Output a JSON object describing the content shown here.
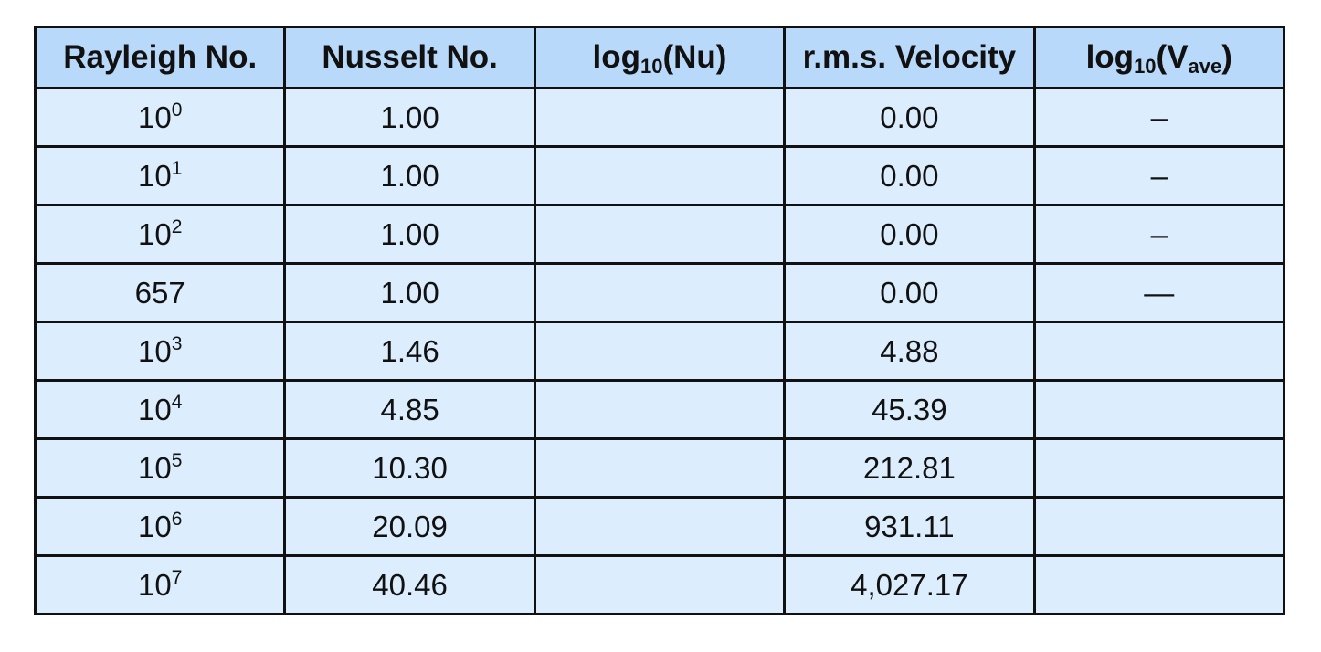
{
  "table": {
    "headers": [
      {
        "text": "Rayleigh No."
      },
      {
        "text": "Nusselt No."
      },
      {
        "pre": "log",
        "sub": "10",
        "post": "(Nu)"
      },
      {
        "text": "r.m.s. Velocity"
      },
      {
        "pre": "log",
        "sub": "10",
        "mid": "(V",
        "sub2": "ave",
        "post": ")"
      }
    ],
    "rows": [
      {
        "ra_base": "10",
        "ra_exp": "0",
        "nu": "1.00",
        "log_nu": "",
        "vel": "0.00",
        "log_v": "–"
      },
      {
        "ra_base": "10",
        "ra_exp": "1",
        "nu": "1.00",
        "log_nu": "",
        "vel": "0.00",
        "log_v": "–"
      },
      {
        "ra_base": "10",
        "ra_exp": "2",
        "nu": "1.00",
        "log_nu": "",
        "vel": "0.00",
        "log_v": "–"
      },
      {
        "ra_base": "657",
        "ra_exp": "",
        "nu": "1.00",
        "log_nu": "",
        "vel": "0.00",
        "log_v": "—"
      },
      {
        "ra_base": "10",
        "ra_exp": "3",
        "nu": "1.46",
        "log_nu": "",
        "vel": "4.88",
        "log_v": ""
      },
      {
        "ra_base": "10",
        "ra_exp": "4",
        "nu": "4.85",
        "log_nu": "",
        "vel": "45.39",
        "log_v": ""
      },
      {
        "ra_base": "10",
        "ra_exp": "5",
        "nu": "10.30",
        "log_nu": "",
        "vel": "212.81",
        "log_v": ""
      },
      {
        "ra_base": "10",
        "ra_exp": "6",
        "nu": "20.09",
        "log_nu": "",
        "vel": "931.11",
        "log_v": ""
      },
      {
        "ra_base": "10",
        "ra_exp": "7",
        "nu": "40.46",
        "log_nu": "",
        "vel": "4,027.17",
        "log_v": ""
      }
    ]
  },
  "colors": {
    "header_bg": "#b9d9fb",
    "cell_bg": "#dcedfd",
    "border": "#111111"
  }
}
